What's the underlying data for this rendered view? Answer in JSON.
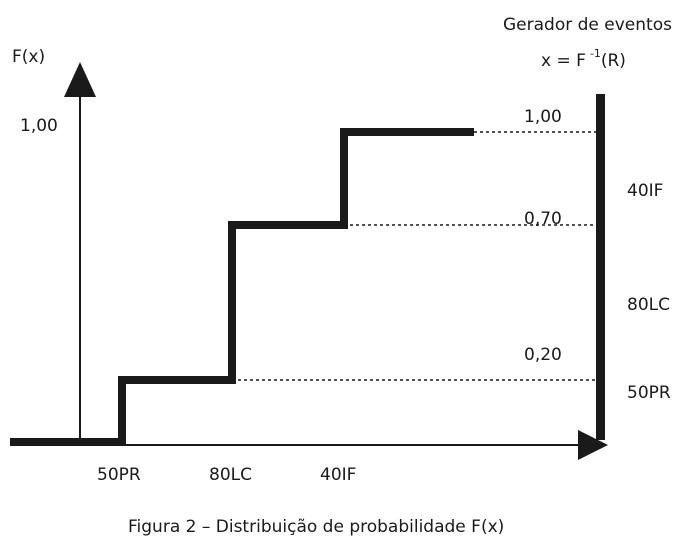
{
  "diagram": {
    "y_axis_label": "F(x)",
    "generator_title": "Gerador de eventos",
    "generator_formula_prefix": "x = F",
    "generator_formula_exponent": "-1",
    "generator_formula_suffix": "(R)",
    "y_tick_label": "1,00",
    "x_categories": [
      "50PR",
      "80LC",
      "40IF"
    ],
    "cumulative_values": [
      0.2,
      0.7,
      1.0
    ],
    "cumulative_labels": [
      "0,20",
      "0,70",
      "1,00"
    ],
    "generator_bands": [
      "40IF",
      "80LC",
      "50PR"
    ],
    "caption": "Figura 2 – Distribuição de probabilidade F(x)"
  }
}
